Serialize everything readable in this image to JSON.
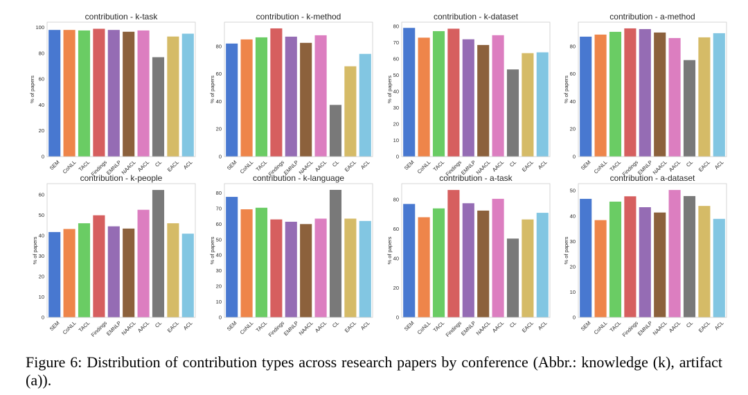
{
  "figure": {
    "caption": "Figure 6: Distribution of contribution types across research papers by conference (Abbr.: knowledge (k), artifact (a))."
  },
  "palette": {
    "SEM": "#4878d0",
    "CoNLL": "#ee854a",
    "TACL": "#6acc64",
    "Findings": "#d65f5f",
    "EMNLP": "#956cb4",
    "NAACL": "#8c613c",
    "AACL": "#dc7ec0",
    "CL": "#797979",
    "EACL": "#d5bb67",
    "ACL": "#82c6e2"
  },
  "chart_data": [
    {
      "type": "bar",
      "title": "contribution - k-task",
      "ylabel": "% of papers",
      "categories": [
        "SEM",
        "CoNLL",
        "TACL",
        "Findings",
        "EMNLP",
        "NAACL",
        "AACL",
        "CL",
        "EACL",
        "ACL"
      ],
      "values": [
        98,
        98,
        97.6,
        98.9,
        98,
        96.6,
        97.6,
        76.9,
        92.9,
        95.1
      ],
      "ylim": [
        0,
        104
      ],
      "yticks": [
        0,
        20,
        40,
        60,
        80,
        100
      ],
      "grid": false
    },
    {
      "type": "bar",
      "title": "contribution - k-method",
      "ylabel": "% of papers",
      "categories": [
        "SEM",
        "CoNLL",
        "TACL",
        "Findings",
        "EMNLP",
        "NAACL",
        "AACL",
        "CL",
        "EACL",
        "ACL"
      ],
      "values": [
        82,
        85,
        86.5,
        93,
        87,
        82.5,
        88,
        37.5,
        65.5,
        74.5
      ],
      "ylim": [
        0,
        97.5
      ],
      "yticks": [
        0,
        20,
        40,
        60,
        80
      ],
      "grid": false
    },
    {
      "type": "bar",
      "title": "contribution - k-dataset",
      "ylabel": "% of papers",
      "categories": [
        "SEM",
        "CoNLL",
        "TACL",
        "Findings",
        "EMNLP",
        "NAACL",
        "AACL",
        "CL",
        "EACL",
        "ACL"
      ],
      "values": [
        79,
        73,
        77,
        78.5,
        72,
        68.5,
        74.5,
        53.5,
        63.5,
        64
      ],
      "ylim": [
        0,
        82.5
      ],
      "yticks": [
        0,
        10,
        20,
        30,
        40,
        50,
        60,
        70,
        80
      ],
      "grid": false
    },
    {
      "type": "bar",
      "title": "contribution - a-method",
      "ylabel": "% of papers",
      "categories": [
        "SEM",
        "CoNLL",
        "TACL",
        "Findings",
        "EMNLP",
        "NAACL",
        "AACL",
        "CL",
        "EACL",
        "ACL"
      ],
      "values": [
        87,
        88.5,
        90.5,
        93,
        92.5,
        90,
        86,
        70,
        86.5,
        89.5
      ],
      "ylim": [
        0,
        97.5
      ],
      "yticks": [
        0,
        20,
        40,
        60,
        80
      ],
      "grid": false
    },
    {
      "type": "bar",
      "title": "contribution - k-people",
      "ylabel": "% of papers",
      "categories": [
        "SEM",
        "CoNLL",
        "TACL",
        "Findings",
        "EMNLP",
        "NAACL",
        "AACL",
        "CL",
        "EACL",
        "ACL"
      ],
      "values": [
        41.8,
        43.3,
        46.1,
        50,
        44.6,
        43.5,
        52.7,
        62.4,
        46.1,
        41
      ],
      "ylim": [
        0,
        65.5
      ],
      "yticks": [
        0,
        10,
        20,
        30,
        40,
        50,
        60
      ],
      "grid": false
    },
    {
      "type": "bar",
      "title": "contribution - k-language",
      "ylabel": "% of papers",
      "categories": [
        "SEM",
        "CoNLL",
        "TACL",
        "Findings",
        "EMNLP",
        "NAACL",
        "AACL",
        "CL",
        "EACL",
        "ACL"
      ],
      "values": [
        77.5,
        69.5,
        70.5,
        63,
        61.5,
        60,
        63.5,
        82,
        63.5,
        62
      ],
      "ylim": [
        0,
        86
      ],
      "yticks": [
        0,
        10,
        20,
        30,
        40,
        50,
        60,
        70,
        80
      ],
      "grid": false
    },
    {
      "type": "bar",
      "title": "contribution - a-task",
      "ylabel": "% of papers",
      "categories": [
        "SEM",
        "CoNLL",
        "TACL",
        "Findings",
        "EMNLP",
        "NAACL",
        "AACL",
        "CL",
        "EACL",
        "ACL"
      ],
      "values": [
        77,
        68,
        74,
        86.5,
        77.5,
        72.5,
        80.5,
        53.5,
        66.5,
        71
      ],
      "ylim": [
        0,
        90.8
      ],
      "yticks": [
        0,
        20,
        40,
        60,
        80
      ],
      "grid": false
    },
    {
      "type": "bar",
      "title": "contribution - a-dataset",
      "ylabel": "% of papers",
      "categories": [
        "SEM",
        "CoNLL",
        "TACL",
        "Findings",
        "EMNLP",
        "NAACL",
        "AACL",
        "CL",
        "EACL",
        "ACL"
      ],
      "values": [
        46.8,
        38.4,
        45.7,
        47.8,
        43.5,
        41.4,
        50.3,
        47.9,
        44,
        38.9
      ],
      "ylim": [
        0,
        52.8
      ],
      "yticks": [
        0,
        10,
        20,
        30,
        40,
        50
      ],
      "grid": false
    }
  ]
}
